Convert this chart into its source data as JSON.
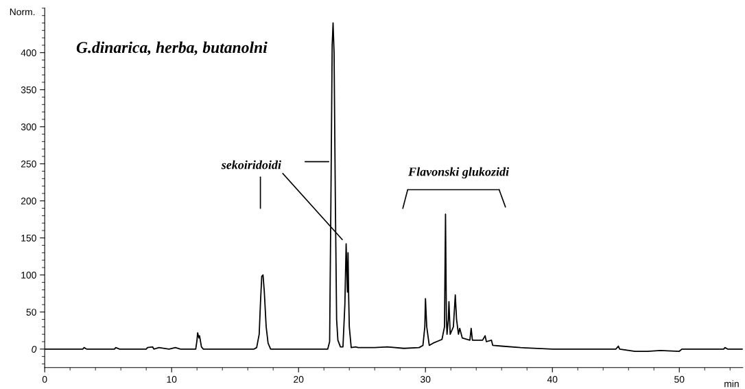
{
  "chart_data": {
    "type": "line",
    "title": "G.dinarica, herba, butanolni",
    "xlabel": "min",
    "ylabel": "Norm.",
    "xlim": [
      0,
      55
    ],
    "ylim": [
      -25,
      460
    ],
    "xticks": [
      0,
      10,
      20,
      30,
      40,
      50
    ],
    "yticks": [
      0,
      50,
      100,
      150,
      200,
      250,
      300,
      350,
      400
    ],
    "grid": false,
    "legend": false,
    "marker": "none",
    "line_style": "solid",
    "annotations": [
      {
        "text": "sekoiridoidi",
        "x": 23.75,
        "y": 142
      },
      "Flavonski glukozidi"
    ],
    "series": [
      {
        "color": "#000000",
        "x": [
          0,
          3.0,
          3.1,
          3.3,
          5.5,
          5.6,
          5.9,
          8.0,
          8.1,
          8.5,
          8.6,
          9.0,
          9.8,
          10.3,
          10.7,
          11.9,
          12.0,
          12.05,
          12.15,
          12.2,
          12.35,
          12.5,
          16.5,
          16.7,
          16.9,
          17.0,
          17.1,
          17.2,
          17.3,
          17.45,
          17.6,
          17.8,
          22.3,
          22.45,
          22.55,
          22.65,
          22.72,
          22.8,
          22.9,
          23.0,
          23.1,
          23.3,
          23.5,
          23.65,
          23.75,
          23.85,
          23.9,
          23.95,
          24.0,
          24.15,
          24.5,
          24.7,
          26.0,
          27.0,
          28.3,
          29.5,
          29.8,
          29.95,
          30.0,
          30.1,
          30.3,
          30.6,
          31.3,
          31.5,
          31.58,
          31.65,
          31.7,
          31.8,
          31.85,
          31.95,
          32.2,
          32.35,
          32.45,
          32.6,
          32.7,
          32.9,
          33.5,
          33.6,
          33.7,
          34.5,
          34.7,
          34.8,
          35.2,
          35.3,
          36.0,
          37.5,
          40.0,
          45.0,
          45.2,
          45.3,
          46.5,
          47.5,
          48.5,
          50.0,
          50.2,
          53.5,
          53.6,
          53.8,
          55
        ],
        "values": [
          0,
          0,
          2,
          0,
          0,
          2,
          0,
          0,
          2,
          3,
          0,
          2,
          0,
          2,
          0,
          0,
          12,
          22,
          15,
          18,
          3,
          0,
          0,
          2,
          20,
          62,
          98,
          100,
          78,
          30,
          8,
          0,
          0,
          10,
          200,
          410,
          440,
          400,
          200,
          40,
          12,
          3,
          3,
          60,
          142,
          77,
          130,
          70,
          30,
          2,
          3,
          2,
          2,
          3,
          1,
          2,
          5,
          30,
          68,
          30,
          5,
          8,
          13,
          30,
          182,
          40,
          20,
          40,
          64,
          20,
          30,
          73,
          40,
          20,
          28,
          15,
          12,
          28,
          12,
          12,
          18,
          10,
          12,
          5,
          4,
          2,
          0,
          0,
          4,
          0,
          -3,
          -3,
          -2,
          -3,
          0,
          0,
          2,
          0,
          0
        ]
      }
    ]
  }
}
